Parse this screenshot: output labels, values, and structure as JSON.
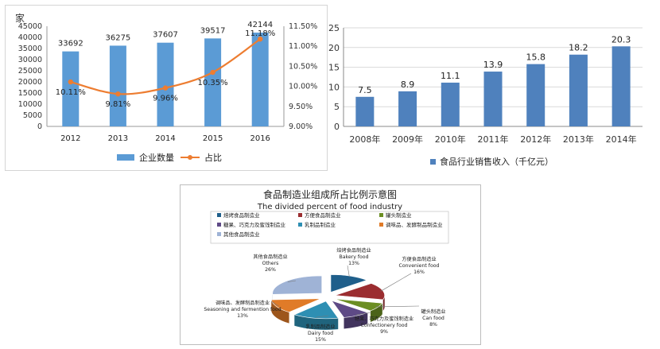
{
  "chart_data": [
    {
      "type": "bar",
      "categories": [
        "2012",
        "2013",
        "2014",
        "2015",
        "2016"
      ],
      "ylabel": "家",
      "ylim": [
        0,
        45000
      ],
      "y_ticks": [
        "0",
        "5000",
        "10000",
        "15000",
        "20000",
        "25000",
        "30000",
        "35000",
        "40000",
        "45000"
      ],
      "y2lim": [
        9.0,
        11.5
      ],
      "y2_ticks": [
        "9.00%",
        "9.50%",
        "10.00%",
        "10.50%",
        "11.00%",
        "11.50%"
      ],
      "series": [
        {
          "name": "企业数量",
          "type": "bar",
          "color": "#5b9bd5",
          "values": [
            33692,
            36275,
            37607,
            39517,
            42144
          ],
          "labels": [
            "33692",
            "36275",
            "37607",
            "39517",
            "42144"
          ]
        },
        {
          "name": "占比",
          "type": "line",
          "axis": "secondary",
          "color": "#ed7d31",
          "values": [
            10.11,
            9.81,
            9.96,
            10.35,
            11.18
          ],
          "labels": [
            "10.11%",
            "9.81%",
            "9.96%",
            "10.35%",
            "11.18%"
          ]
        }
      ],
      "grid": false,
      "legend": "bottom"
    },
    {
      "type": "bar",
      "categories": [
        "2008年",
        "2009年",
        "2010年",
        "2011年",
        "2012年",
        "2013年",
        "2014年"
      ],
      "ylim": [
        0,
        25
      ],
      "y_ticks": [
        "0",
        "5",
        "10",
        "15",
        "20",
        "25"
      ],
      "series": [
        {
          "name": "食品行业销售收入（千亿元）",
          "color": "#4f81bd",
          "values": [
            7.5,
            8.9,
            11.1,
            13.9,
            15.8,
            18.2,
            20.3
          ],
          "labels": [
            "7.5",
            "8.9",
            "11.1",
            "13.9",
            "15.8",
            "18.2",
            "20.3"
          ]
        }
      ],
      "grid": true,
      "legend": "bottom"
    },
    {
      "type": "pie",
      "title": "食品制造业组成所占比例示意图",
      "subtitle": "The divided percent of food industry",
      "slices": [
        {
          "legend": "焙烤食品制造业",
          "cn": "焙烤食品制造业",
          "en": "Bakery food",
          "pct": "13%",
          "value": 13,
          "color": "#1f5f8b"
        },
        {
          "legend": "方便食品制造业",
          "cn": "方便食品制造业",
          "en": "Convenient food",
          "pct": "16%",
          "value": 16,
          "color": "#9b2d30"
        },
        {
          "legend": "罐头制造业",
          "cn": "罐头制造业",
          "en": "Can food",
          "pct": "8%",
          "value": 8,
          "color": "#6b8e23"
        },
        {
          "legend": "糖果、巧克力及蜜饯制造业",
          "cn": "糖果、巧克力及蜜饯制造业",
          "en": "Confectionery food",
          "pct": "9%",
          "value": 9,
          "color": "#5e4a86"
        },
        {
          "legend": "乳制品制造业",
          "cn": "乳制品制造业",
          "en": "Dairy food",
          "pct": "15%",
          "value": 15,
          "color": "#2e8fb3"
        },
        {
          "legend": "调味品、发酵制品制造业",
          "cn": "调味品、发酵制品制造业",
          "en": "Seasoning and fermention food",
          "pct": "13%",
          "value": 13,
          "color": "#e07b28"
        },
        {
          "legend": "其他食品制造业",
          "cn": "其他食品制造业",
          "en": "Others",
          "pct": "26%",
          "value": 26,
          "color": "#9fb3d6"
        }
      ],
      "legend": "top"
    }
  ]
}
